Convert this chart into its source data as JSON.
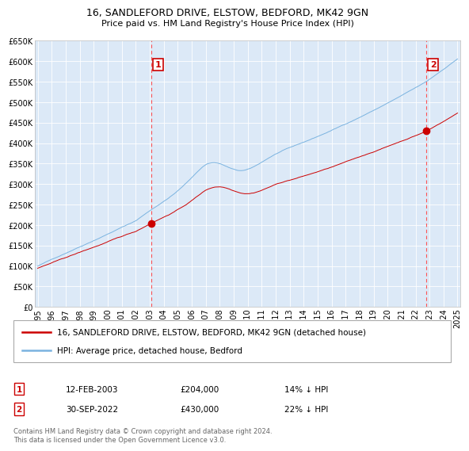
{
  "title": "16, SANDLEFORD DRIVE, ELSTOW, BEDFORD, MK42 9GN",
  "subtitle": "Price paid vs. HM Land Registry's House Price Index (HPI)",
  "x_start_year": 1995,
  "x_end_year": 2025,
  "y_min": 0,
  "y_max": 650000,
  "y_ticks": [
    0,
    50000,
    100000,
    150000,
    200000,
    250000,
    300000,
    350000,
    400000,
    450000,
    500000,
    550000,
    600000,
    650000
  ],
  "plot_bg_color": "#dce9f7",
  "fig_bg_color": "#ffffff",
  "hpi_color": "#7ab3e0",
  "price_color": "#cc0000",
  "grid_color": "#ffffff",
  "vline_color": "#ff5555",
  "sale1_year": 2003.12,
  "sale1_price": 204000,
  "sale2_year": 2022.75,
  "sale2_price": 430000,
  "legend_line1": "16, SANDLEFORD DRIVE, ELSTOW, BEDFORD, MK42 9GN (detached house)",
  "legend_line2": "HPI: Average price, detached house, Bedford",
  "note1_date": "12-FEB-2003",
  "note1_price": "£204,000",
  "note1_hpi": "14% ↓ HPI",
  "note2_date": "30-SEP-2022",
  "note2_price": "£430,000",
  "note2_hpi": "22% ↓ HPI",
  "footer": "Contains HM Land Registry data © Crown copyright and database right 2024.\nThis data is licensed under the Open Government Licence v3.0."
}
